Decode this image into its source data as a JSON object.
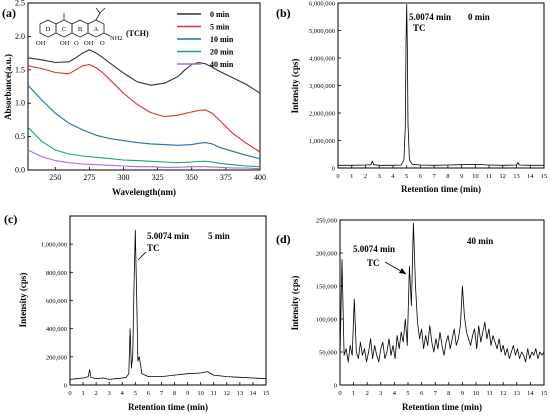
{
  "chart_data": [
    {
      "id": "a",
      "type": "line",
      "panel_label": "(a)",
      "xlabel": "Wavelength(nm)",
      "ylabel": "Absorbance(a.u.)",
      "xlim": [
        230,
        400
      ],
      "ylim": [
        0,
        2.5
      ],
      "xticks": [
        250,
        275,
        300,
        325,
        350,
        375,
        400
      ],
      "yticks": [
        0.0,
        0.5,
        1.0,
        1.5,
        2.0,
        2.5
      ],
      "ytick_labels": [
        "0.0",
        "0.5",
        "1.0",
        "1.5",
        "2.0",
        "2.5"
      ],
      "structure_label": "(TCH)",
      "structure_ring_labels": [
        "D",
        "C",
        "B",
        "A"
      ],
      "structure_group_labels": [
        "OH",
        "OH",
        "O",
        "OH",
        "O",
        "NH2"
      ],
      "legend_placement": "top-right",
      "series": [
        {
          "name": "0 min",
          "color": "#333333",
          "x": [
            230,
            240,
            250,
            260,
            265,
            270,
            275,
            280,
            285,
            290,
            300,
            310,
            320,
            330,
            340,
            345,
            350,
            355,
            360,
            365,
            370,
            380,
            390,
            400
          ],
          "y": [
            1.68,
            1.65,
            1.61,
            1.62,
            1.68,
            1.75,
            1.8,
            1.75,
            1.68,
            1.6,
            1.45,
            1.32,
            1.27,
            1.3,
            1.4,
            1.5,
            1.58,
            1.61,
            1.59,
            1.54,
            1.48,
            1.38,
            1.28,
            1.15
          ]
        },
        {
          "name": "5 min",
          "color": "#e03030",
          "x": [
            230,
            240,
            250,
            260,
            265,
            270,
            275,
            280,
            285,
            290,
            300,
            310,
            320,
            330,
            340,
            350,
            355,
            360,
            365,
            370,
            380,
            390,
            400
          ],
          "y": [
            1.56,
            1.52,
            1.46,
            1.44,
            1.5,
            1.56,
            1.58,
            1.53,
            1.45,
            1.35,
            1.15,
            0.98,
            0.86,
            0.8,
            0.82,
            0.87,
            0.89,
            0.9,
            0.85,
            0.75,
            0.55,
            0.4,
            0.27
          ]
        },
        {
          "name": "10 min",
          "color": "#1f6fb4",
          "x": [
            230,
            240,
            250,
            260,
            270,
            280,
            290,
            300,
            310,
            320,
            330,
            340,
            350,
            355,
            360,
            365,
            370,
            380,
            390,
            400
          ],
          "y": [
            1.27,
            1.05,
            0.85,
            0.7,
            0.6,
            0.52,
            0.47,
            0.44,
            0.41,
            0.39,
            0.38,
            0.37,
            0.38,
            0.4,
            0.41,
            0.39,
            0.34,
            0.28,
            0.22,
            0.17
          ]
        },
        {
          "name": "20 min",
          "color": "#1aa37a",
          "x": [
            230,
            240,
            250,
            260,
            270,
            280,
            290,
            300,
            310,
            320,
            330,
            340,
            350,
            355,
            360,
            365,
            370,
            380,
            390,
            400
          ],
          "y": [
            0.64,
            0.43,
            0.3,
            0.24,
            0.21,
            0.19,
            0.17,
            0.15,
            0.14,
            0.13,
            0.12,
            0.11,
            0.12,
            0.13,
            0.13,
            0.12,
            0.1,
            0.08,
            0.06,
            0.05
          ]
        },
        {
          "name": "40 min",
          "color": "#b06ad6",
          "x": [
            230,
            240,
            250,
            260,
            270,
            280,
            290,
            300,
            310,
            320,
            330,
            340,
            350,
            360,
            370,
            380,
            390,
            400
          ],
          "y": [
            0.3,
            0.2,
            0.14,
            0.11,
            0.09,
            0.08,
            0.07,
            0.06,
            0.05,
            0.05,
            0.04,
            0.04,
            0.05,
            0.05,
            0.04,
            0.03,
            0.03,
            0.02
          ]
        }
      ]
    },
    {
      "id": "b",
      "type": "line",
      "panel_label": "(b)",
      "xlabel": "Retention time (min)",
      "ylabel": "Intensity (cps)",
      "xlim": [
        0,
        15
      ],
      "ylim": [
        0,
        6000000
      ],
      "xticks": [
        0,
        1,
        2,
        3,
        4,
        5,
        6,
        7,
        8,
        9,
        10,
        11,
        12,
        13,
        14,
        15
      ],
      "yticks": [
        0,
        1000000,
        2000000,
        3000000,
        4000000,
        5000000,
        6000000
      ],
      "ytick_labels": [
        "0",
        "1,000,000",
        "2,000,000",
        "3,000,000",
        "4,000,000",
        "5,000,000",
        "6,000,000"
      ],
      "time_label": "0 min",
      "peak_label": "5.0074 min",
      "compound_label": "TC",
      "series": [
        {
          "name": "",
          "color": "#000000",
          "x": [
            0.0,
            1.0,
            2.0,
            2.4,
            2.5,
            2.6,
            3.0,
            4.0,
            4.6,
            4.8,
            4.9,
            4.95,
            5.0,
            5.05,
            5.1,
            5.2,
            5.4,
            6.0,
            7.0,
            8.0,
            9.0,
            10.0,
            11.0,
            12.0,
            13.0,
            13.1,
            13.2,
            14.0,
            15.0
          ],
          "y": [
            100000,
            100000,
            110000,
            120000,
            250000,
            120000,
            100000,
            100000,
            110000,
            300000,
            1500000,
            4500000,
            5950000,
            4200000,
            1600000,
            300000,
            140000,
            110000,
            100000,
            110000,
            120000,
            130000,
            110000,
            100000,
            110000,
            200000,
            110000,
            100000,
            100000
          ]
        }
      ]
    },
    {
      "id": "c",
      "type": "line",
      "panel_label": "(c)",
      "xlabel": "Retention time (min)",
      "ylabel": "Intensity (cps)",
      "xlim": [
        0,
        15
      ],
      "ylim": [
        0,
        1200000
      ],
      "xticks": [
        0,
        1,
        2,
        3,
        4,
        5,
        6,
        7,
        8,
        9,
        10,
        11,
        12,
        13,
        14,
        15
      ],
      "yticks": [
        0,
        200000,
        400000,
        600000,
        800000,
        1000000
      ],
      "ytick_labels": [
        "0",
        "200,000",
        "400,000",
        "600,000",
        "800,000",
        "1,000,000"
      ],
      "time_label": "5 min",
      "peak_label": "5.0074 min",
      "compound_label": "TC",
      "series": [
        {
          "name": "",
          "color": "#000000",
          "x": [
            0.0,
            0.5,
            1.0,
            1.4,
            1.5,
            1.6,
            2.0,
            2.5,
            3.0,
            3.5,
            4.0,
            4.3,
            4.5,
            4.6,
            4.7,
            4.8,
            4.9,
            5.0,
            5.1,
            5.2,
            5.3,
            5.5,
            6.0,
            7.0,
            8.0,
            9.0,
            10.0,
            10.5,
            11.0,
            12.0,
            13.0,
            14.0,
            15.0
          ],
          "y": [
            40000,
            45000,
            50000,
            60000,
            110000,
            55000,
            45000,
            50000,
            40000,
            45000,
            50000,
            55000,
            80000,
            400000,
            120000,
            200000,
            700000,
            1100000,
            650000,
            170000,
            200000,
            80000,
            60000,
            60000,
            70000,
            80000,
            85000,
            95000,
            70000,
            60000,
            55000,
            50000,
            45000
          ]
        }
      ]
    },
    {
      "id": "d",
      "type": "line",
      "panel_label": "(d)",
      "xlabel": "Retention time (min)",
      "ylabel": "Intensity (cps)",
      "xlim": [
        0,
        15
      ],
      "ylim": [
        0,
        250000
      ],
      "xticks": [
        0,
        1,
        2,
        3,
        4,
        5,
        6,
        7,
        8,
        9,
        10,
        11,
        12,
        13,
        14,
        15
      ],
      "yticks": [
        0,
        50000,
        100000,
        150000,
        200000,
        250000
      ],
      "ytick_labels": [
        "0",
        "50,000",
        "100,000",
        "150,000",
        "200,000",
        "250,000"
      ],
      "time_label": "40 min",
      "peak_label": "5.0074 min",
      "compound_label": "TC",
      "series": [
        {
          "name": "",
          "color": "#000000",
          "x": [
            0.0,
            0.15,
            0.3,
            0.45,
            0.6,
            0.75,
            0.9,
            1.05,
            1.2,
            1.35,
            1.5,
            1.65,
            1.8,
            1.95,
            2.1,
            2.25,
            2.4,
            2.55,
            2.7,
            2.85,
            3.0,
            3.15,
            3.3,
            3.45,
            3.6,
            3.75,
            3.9,
            4.05,
            4.2,
            4.35,
            4.5,
            4.65,
            4.8,
            4.95,
            5.1,
            5.25,
            5.4,
            5.55,
            5.7,
            5.85,
            6.0,
            6.15,
            6.3,
            6.45,
            6.6,
            6.75,
            6.9,
            7.05,
            7.2,
            7.35,
            7.5,
            7.65,
            7.8,
            7.95,
            8.1,
            8.25,
            8.4,
            8.55,
            8.7,
            8.85,
            9.0,
            9.15,
            9.3,
            9.45,
            9.6,
            9.75,
            9.9,
            10.05,
            10.2,
            10.35,
            10.5,
            10.65,
            10.8,
            10.95,
            11.1,
            11.25,
            11.4,
            11.55,
            11.7,
            11.85,
            12.0,
            12.15,
            12.3,
            12.45,
            12.6,
            12.75,
            12.9,
            13.05,
            13.2,
            13.35,
            13.5,
            13.65,
            13.8,
            13.95,
            14.1,
            14.25,
            14.4,
            14.55,
            14.7,
            14.85,
            15.0
          ],
          "y": [
            40000,
            190000,
            45000,
            55000,
            35000,
            60000,
            45000,
            130000,
            50000,
            40000,
            65000,
            45000,
            55000,
            35000,
            50000,
            70000,
            40000,
            60000,
            45000,
            35000,
            55000,
            65000,
            40000,
            50000,
            70000,
            45000,
            60000,
            40000,
            75000,
            55000,
            80000,
            65000,
            100000,
            60000,
            180000,
            120000,
            245000,
            150000,
            95000,
            70000,
            85000,
            55000,
            75000,
            60000,
            90000,
            65000,
            50000,
            70000,
            55000,
            80000,
            60000,
            45000,
            65000,
            75000,
            55000,
            70000,
            85000,
            60000,
            70000,
            90000,
            150000,
            105000,
            80000,
            70000,
            60000,
            75000,
            85000,
            55000,
            90000,
            65000,
            80000,
            95000,
            70000,
            85000,
            60000,
            75000,
            65000,
            55000,
            70000,
            50000,
            60000,
            45000,
            55000,
            40000,
            50000,
            60000,
            45000,
            55000,
            40000,
            50000,
            45000,
            35000,
            55000,
            40000,
            50000,
            45000,
            55000,
            40000,
            50000,
            45000,
            50000
          ]
        }
      ]
    }
  ]
}
